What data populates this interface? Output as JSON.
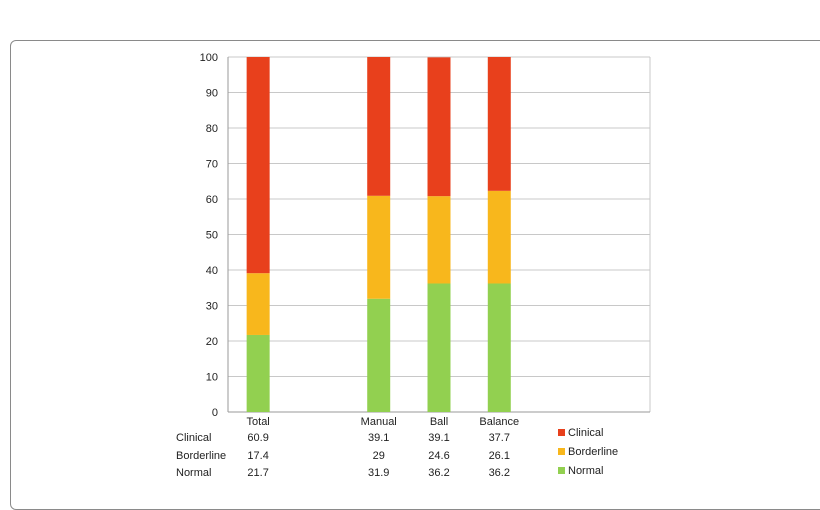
{
  "chart_data": {
    "type": "bar",
    "stacked": true,
    "categories": [
      "Total",
      "",
      "Manual",
      "Ball",
      "Balance",
      "",
      ""
    ],
    "series": [
      {
        "name": "Normal",
        "values": [
          21.7,
          null,
          31.9,
          36.2,
          36.2,
          null,
          null
        ],
        "color": "#92d050"
      },
      {
        "name": "Borderline",
        "values": [
          17.4,
          null,
          29,
          24.6,
          26.1,
          null,
          null
        ],
        "color": "#f8b71c"
      },
      {
        "name": "Clinical",
        "values": [
          60.9,
          null,
          39.1,
          39.1,
          37.7,
          null,
          null
        ],
        "color": "#e8401c"
      }
    ],
    "ylim": [
      0,
      100
    ],
    "yticks": [
      "0",
      "10",
      "20",
      "30",
      "40",
      "50",
      "60",
      "70",
      "80",
      "90",
      "100"
    ],
    "grid": true,
    "legend_position": "right",
    "table": {
      "rows": [
        {
          "label": "Clinical",
          "cells": [
            "60.9",
            "",
            "39.1",
            "39.1",
            "37.7",
            "",
            ""
          ]
        },
        {
          "label": "Borderline",
          "cells": [
            "17.4",
            "",
            "29",
            "24.6",
            "26.1",
            "",
            ""
          ]
        },
        {
          "label": "Normal",
          "cells": [
            "21.7",
            "",
            "31.9",
            "36.2",
            "36.2",
            "",
            ""
          ]
        }
      ]
    },
    "legend": [
      {
        "name": "Clinical",
        "color": "#e8401c"
      },
      {
        "name": "Borderline",
        "color": "#f8b71c"
      },
      {
        "name": "Normal",
        "color": "#92d050"
      }
    ]
  }
}
